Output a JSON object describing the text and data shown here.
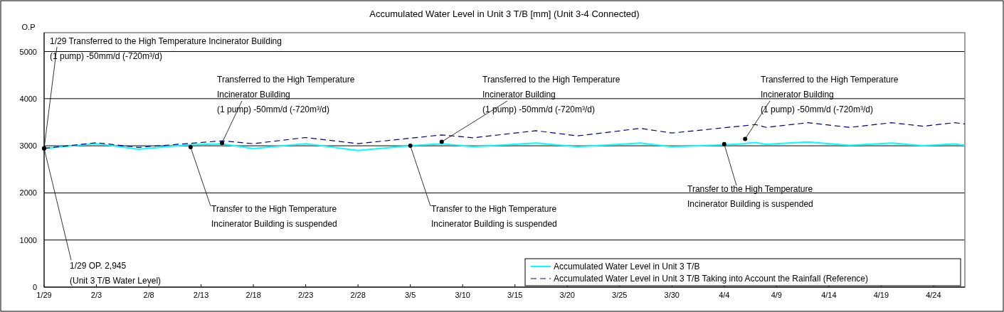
{
  "chart_data": {
    "type": "line",
    "title": "Accumulated Water Level in Unit 3 T/B [mm] (Unit 3-4 Connected)",
    "ylabel": "O.P",
    "xlim": [
      "--01-29",
      "--04-27"
    ],
    "xticks": [
      {
        "value": "--01-29",
        "label": "1/29"
      },
      {
        "value": "--02-03",
        "label": "2/3"
      },
      {
        "value": "--02-08",
        "label": "2/8"
      },
      {
        "value": "--02-13",
        "label": "2/13"
      },
      {
        "value": "--02-18",
        "label": "2/18"
      },
      {
        "value": "--02-23",
        "label": "2/23"
      },
      {
        "value": "--02-28",
        "label": "2/28"
      },
      {
        "value": "--03-05",
        "label": "3/5"
      },
      {
        "value": "--03-10",
        "label": "3/10"
      },
      {
        "value": "--03-15",
        "label": "3/15"
      },
      {
        "value": "--03-20",
        "label": "3/20"
      },
      {
        "value": "--03-25",
        "label": "3/25"
      },
      {
        "value": "--03-30",
        "label": "3/30"
      },
      {
        "value": "--04-04",
        "label": "4/4"
      },
      {
        "value": "--04-09",
        "label": "4/9"
      },
      {
        "value": "--04-14",
        "label": "4/14"
      },
      {
        "value": "--04-19",
        "label": "4/19"
      },
      {
        "value": "--04-24",
        "label": "4/24"
      }
    ],
    "ylim": [
      0,
      5400
    ],
    "yticks": [
      0,
      1000,
      2000,
      3000,
      4000,
      5000
    ],
    "grid": "y",
    "legend": "bottom right",
    "marker": "none",
    "series": [
      {
        "name": "Accumulated Water Level in Unit 3 T/B",
        "color": "#00ffff",
        "line_style": "solid",
        "x": [
          "--01-29",
          "--02-03",
          "--02-07",
          "--02-12",
          "--02-15",
          "--02-18",
          "--02-23",
          "--02-28",
          "--03-05",
          "--03-08",
          "--03-11",
          "--03-17",
          "--03-21",
          "--03-27",
          "--03-30",
          "--04-05",
          "--04-07",
          "--04-08",
          "--04-12",
          "--04-16",
          "--04-20",
          "--04-23",
          "--04-26",
          "--04-27"
        ],
        "values": [
          2945,
          3045,
          2925,
          3025,
          3040,
          2940,
          3045,
          2900,
          3000,
          3045,
          2980,
          3060,
          2980,
          3060,
          2980,
          3030,
          3070,
          3030,
          3080,
          3010,
          3060,
          3000,
          3040,
          3010
        ]
      },
      {
        "name": "Accumulated Water Level in Unit 3 T/B Taking into Account the Rainfall (Reference)",
        "color": "#000080",
        "line_style": "dashed",
        "x": [
          "--01-29",
          "--02-03",
          "--02-07",
          "--02-15",
          "--02-18",
          "--02-23",
          "--02-28",
          "--03-08",
          "--03-11",
          "--03-17",
          "--03-21",
          "--03-27",
          "--03-30",
          "--04-07",
          "--04-08",
          "--04-12",
          "--04-16",
          "--04-20",
          "--04-23",
          "--04-26",
          "--04-27"
        ],
        "values": [
          2945,
          3065,
          2965,
          3105,
          3045,
          3175,
          3045,
          3230,
          3170,
          3320,
          3210,
          3370,
          3270,
          3450,
          3390,
          3490,
          3390,
          3490,
          3415,
          3490,
          3465
        ]
      }
    ],
    "annotations": [
      {
        "text": "1/29 Transferred to the High Temperature Incinerator Building\n(1 pump) -50mm/d (-720m³/d)",
        "x": "--01-29",
        "y": 2945
      },
      {
        "text": "1/29  OP. 2,945\n(Unit 3 T/B Water Level)",
        "x": "--01-29",
        "y": 2945
      },
      {
        "text": "Transfer to the High Temperature\nIncinerator Building  is suspended",
        "x": "--02-12",
        "y": 2970
      },
      {
        "text": "Transferred to the High Temperature\nIncinerator Building\n(1 pump) -50mm/d (-720m³/d)",
        "x": "--02-15",
        "y": 3060
      },
      {
        "text": "Transfer to the High Temperature\nIncinerator Building  is suspended",
        "x": "--03-05",
        "y": 3000
      },
      {
        "text": "Transferred to the High Temperature\nIncinerator Building\n(1 pump) -50mm/d (-720m³/d)",
        "x": "--03-08",
        "y": 3085
      },
      {
        "text": "Transfer to the High Temperature\nIncinerator Building  is suspended",
        "x": "--04-04",
        "y": 3035
      },
      {
        "text": "Transferred to the High Temperature\nIncinerator Building\n(1 pump) -50mm/d (-720m³/d)",
        "x": "--04-06",
        "y": 3145
      }
    ]
  }
}
